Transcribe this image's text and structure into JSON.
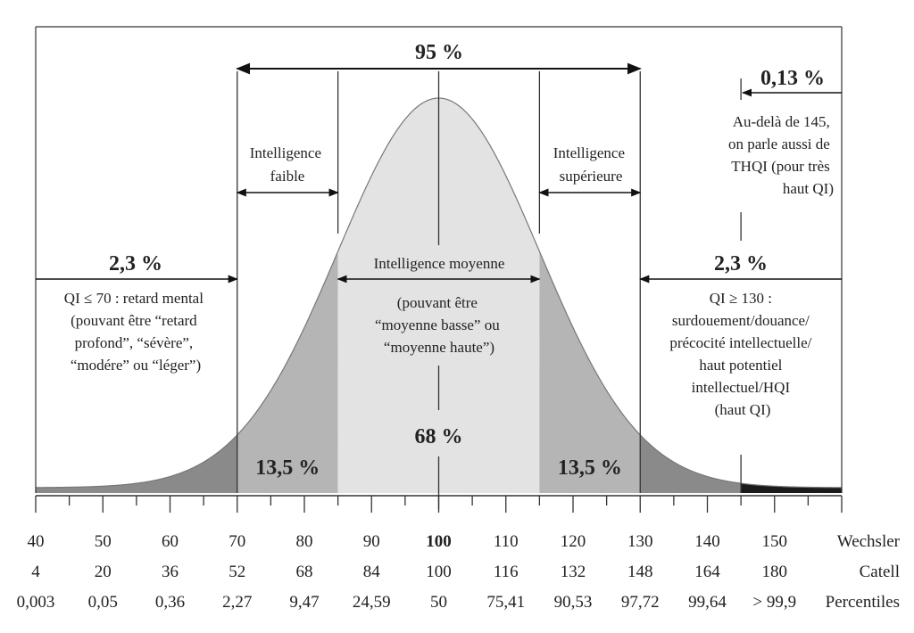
{
  "chart_data": {
    "type": "area",
    "title": "",
    "distribution": {
      "mean": 100,
      "sd": 15,
      "xlim": [
        40,
        160
      ]
    },
    "bands": [
      {
        "from": 40,
        "to": 70,
        "color": "#8a8a8a",
        "pct_label": ""
      },
      {
        "from": 70,
        "to": 85,
        "color": "#b5b5b5",
        "pct_label": "13,5 %"
      },
      {
        "from": 85,
        "to": 115,
        "color": "#e3e3e3",
        "pct_label": "68 %"
      },
      {
        "from": 115,
        "to": 130,
        "color": "#b5b5b5",
        "pct_label": "13,5 %"
      },
      {
        "from": 130,
        "to": 145,
        "color": "#8a8a8a",
        "pct_label": ""
      },
      {
        "from": 145,
        "to": 160,
        "color": "#1a1a1a",
        "pct_label": ""
      }
    ],
    "scales": [
      {
        "name": "Wechsler",
        "values": [
          "40",
          "50",
          "60",
          "70",
          "80",
          "90",
          "100",
          "110",
          "120",
          "130",
          "140",
          "150"
        ]
      },
      {
        "name": "Catell",
        "values": [
          "4",
          "20",
          "36",
          "52",
          "68",
          "84",
          "100",
          "116",
          "132",
          "148",
          "164",
          "180"
        ]
      },
      {
        "name": "Percentiles",
        "values": [
          "0,003",
          "0,05",
          "0,36",
          "2,27",
          "9,47",
          "24,59",
          "50",
          "75,41",
          "90,53",
          "97,72",
          "99,64",
          "> 99,9"
        ]
      }
    ],
    "scale_positions": [
      40,
      50,
      60,
      70,
      80,
      90,
      100,
      110,
      120,
      130,
      140,
      150
    ],
    "annotations": {
      "pct_95": "95 %",
      "pct_013": "0,13 %",
      "left_23": "2,3 %",
      "right_23": "2,3 %",
      "faible": [
        "Intelligence",
        "faible"
      ],
      "superieure": [
        "Intelligence",
        "supérieure"
      ],
      "moyenne_title": "Intelligence moyenne",
      "moyenne_note": [
        "(pouvant être",
        "“moyenne basse” ou",
        "“moyenne haute”)"
      ],
      "left_note": [
        "QI ≤ 70 : retard mental",
        "(pouvant être “retard",
        "profond”, “sévère”,",
        "“modére” ou “léger”)"
      ],
      "right_note": [
        "QI ≥ 130 :",
        "surdouement/douance/",
        "précocité intellectuelle/",
        "haut potentiel",
        "intellectuel/HQI",
        "(haut QI)"
      ],
      "above145_note": [
        "Au-delà de 145,",
        "on parle aussi de",
        "THQI (pour très",
        "haut QI)"
      ]
    }
  }
}
